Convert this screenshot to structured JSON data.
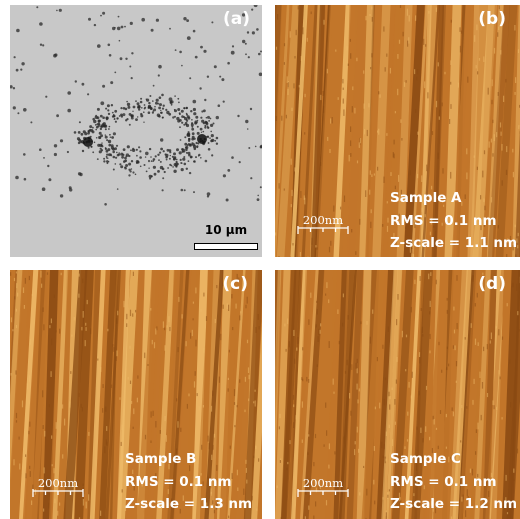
{
  "panels": {
    "a": {
      "label": "(a)",
      "scale_bar": "10 µm"
    },
    "b": {
      "label": "(b)",
      "scale_bar": "200nm",
      "sample": "Sample A",
      "rms": "RMS = 0.1 nm",
      "zscale": "Z-scale = 1.1 nm"
    },
    "c": {
      "label": "(c)",
      "scale_bar": "200nm",
      "sample": "Sample B",
      "rms": "RMS = 0.1 nm",
      "zscale": "Z-scale = 1.3 nm"
    },
    "d": {
      "label": "(d)",
      "scale_bar": "200nm",
      "sample": "Sample C",
      "rms": "RMS = 0.1 nm",
      "zscale": "Z-scale = 1.2 nm"
    }
  },
  "colors": {
    "afm_dark": "#8a4a12",
    "afm_mid": "#c2762a",
    "afm_light": "#f0bc6a",
    "sem_bg": "#c8c8c8",
    "sem_dots": "#2a2a2a"
  }
}
